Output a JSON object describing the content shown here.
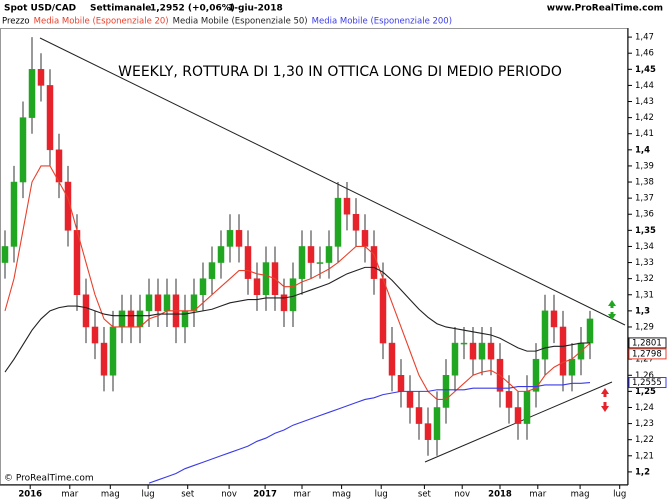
{
  "chart_data": {
    "type": "candlestick",
    "title": "WEEKLY, ROTTURA DI 1,30 IN OTTICA LONG DI MEDIO PERIODO",
    "header": {
      "instrument": "Spot USD/CAD",
      "period": "Settimanale",
      "price": "1,2952 (+0,06%)",
      "date": "1-giu-2018",
      "site": "www.ProRealTime.com"
    },
    "footer": "© ProRealTime.com",
    "price_name": "Prezzo",
    "up_color": "#21a621",
    "down_color": "#e6222b",
    "open": [
      1.33,
      1.34,
      1.38,
      1.42,
      1.45,
      1.44,
      1.4,
      1.38,
      1.35,
      1.31,
      1.29,
      1.28,
      1.26,
      1.29,
      1.3,
      1.29,
      1.3,
      1.31,
      1.3,
      1.31,
      1.29,
      1.3,
      1.31,
      1.32,
      1.33,
      1.34,
      1.35,
      1.34,
      1.32,
      1.31,
      1.33,
      1.31,
      1.3,
      1.32,
      1.34,
      1.33,
      1.33,
      1.34,
      1.37,
      1.36,
      1.35,
      1.34,
      1.32,
      1.28,
      1.26,
      1.25,
      1.24,
      1.23,
      1.22,
      1.24,
      1.26,
      1.28,
      1.28,
      1.27,
      1.28,
      1.27,
      1.25,
      1.24,
      1.23,
      1.25,
      1.27,
      1.3,
      1.29,
      1.26,
      1.27,
      1.28
    ],
    "high": [
      1.35,
      1.39,
      1.43,
      1.47,
      1.46,
      1.45,
      1.41,
      1.39,
      1.36,
      1.32,
      1.3,
      1.29,
      1.3,
      1.31,
      1.31,
      1.31,
      1.32,
      1.32,
      1.32,
      1.32,
      1.31,
      1.32,
      1.33,
      1.34,
      1.35,
      1.36,
      1.36,
      1.35,
      1.33,
      1.34,
      1.34,
      1.32,
      1.33,
      1.35,
      1.35,
      1.34,
      1.35,
      1.38,
      1.38,
      1.37,
      1.36,
      1.35,
      1.33,
      1.29,
      1.27,
      1.26,
      1.25,
      1.24,
      1.25,
      1.27,
      1.29,
      1.29,
      1.29,
      1.29,
      1.29,
      1.28,
      1.26,
      1.25,
      1.26,
      1.28,
      1.31,
      1.31,
      1.3,
      1.28,
      1.29,
      1.3
    ],
    "low": [
      1.32,
      1.33,
      1.37,
      1.41,
      1.43,
      1.39,
      1.37,
      1.34,
      1.3,
      1.28,
      1.27,
      1.25,
      1.25,
      1.28,
      1.28,
      1.28,
      1.29,
      1.29,
      1.29,
      1.28,
      1.28,
      1.29,
      1.3,
      1.31,
      1.32,
      1.33,
      1.33,
      1.31,
      1.3,
      1.3,
      1.3,
      1.29,
      1.29,
      1.31,
      1.32,
      1.32,
      1.32,
      1.33,
      1.35,
      1.34,
      1.33,
      1.31,
      1.27,
      1.25,
      1.24,
      1.23,
      1.22,
      1.21,
      1.21,
      1.23,
      1.25,
      1.27,
      1.26,
      1.26,
      1.26,
      1.24,
      1.23,
      1.22,
      1.22,
      1.24,
      1.26,
      1.28,
      1.25,
      1.25,
      1.26,
      1.27
    ],
    "close": [
      1.34,
      1.38,
      1.42,
      1.45,
      1.44,
      1.4,
      1.38,
      1.35,
      1.31,
      1.29,
      1.28,
      1.26,
      1.29,
      1.3,
      1.29,
      1.3,
      1.31,
      1.3,
      1.31,
      1.29,
      1.3,
      1.31,
      1.32,
      1.33,
      1.34,
      1.35,
      1.34,
      1.32,
      1.31,
      1.33,
      1.31,
      1.3,
      1.32,
      1.34,
      1.33,
      1.33,
      1.34,
      1.37,
      1.36,
      1.35,
      1.34,
      1.32,
      1.28,
      1.26,
      1.25,
      1.24,
      1.23,
      1.22,
      1.24,
      1.26,
      1.28,
      1.28,
      1.27,
      1.28,
      1.27,
      1.25,
      1.24,
      1.23,
      1.25,
      1.27,
      1.3,
      1.29,
      1.26,
      1.27,
      1.28,
      1.295
    ],
    "series": [
      {
        "name": "Media Mobile (Esponenziale 20)",
        "color": "#e8412c",
        "last_label": "1,2798",
        "values": [
          1.3,
          1.32,
          1.35,
          1.38,
          1.39,
          1.39,
          1.38,
          1.37,
          1.35,
          1.33,
          1.31,
          1.295,
          1.29,
          1.29,
          1.29,
          1.29,
          1.295,
          1.297,
          1.3,
          1.3,
          1.3,
          1.3,
          1.305,
          1.31,
          1.315,
          1.32,
          1.325,
          1.325,
          1.323,
          1.322,
          1.32,
          1.315,
          1.315,
          1.318,
          1.32,
          1.323,
          1.326,
          1.33,
          1.335,
          1.34,
          1.34,
          1.335,
          1.32,
          1.305,
          1.29,
          1.275,
          1.26,
          1.25,
          1.245,
          1.245,
          1.25,
          1.255,
          1.26,
          1.262,
          1.263,
          1.26,
          1.255,
          1.25,
          1.25,
          1.252,
          1.26,
          1.265,
          1.268,
          1.27,
          1.275,
          1.2798
        ]
      },
      {
        "name": "Media Mobile (Esponenziale 50)",
        "color": "#222222",
        "last_label": "1,2801",
        "values": [
          1.262,
          1.27,
          1.279,
          1.288,
          1.295,
          1.3,
          1.302,
          1.303,
          1.303,
          1.302,
          1.3,
          1.298,
          1.297,
          1.297,
          1.297,
          1.297,
          1.297,
          1.298,
          1.298,
          1.298,
          1.298,
          1.299,
          1.3,
          1.301,
          1.303,
          1.305,
          1.306,
          1.307,
          1.307,
          1.308,
          1.308,
          1.308,
          1.309,
          1.311,
          1.313,
          1.315,
          1.317,
          1.32,
          1.323,
          1.325,
          1.327,
          1.327,
          1.324,
          1.319,
          1.313,
          1.307,
          1.301,
          1.296,
          1.292,
          1.29,
          1.289,
          1.288,
          1.287,
          1.286,
          1.285,
          1.283,
          1.28,
          1.277,
          1.275,
          1.275,
          1.277,
          1.278,
          1.278,
          1.279,
          1.28,
          1.2801
        ]
      },
      {
        "name": "Media Mobile (Esponenziale 200)",
        "color": "#3b3be6",
        "last_label": "1,2555",
        "values": [
          null,
          null,
          null,
          null,
          null,
          null,
          null,
          null,
          null,
          null,
          null,
          null,
          null,
          null,
          null,
          null,
          1.193,
          1.195,
          1.197,
          1.199,
          1.202,
          1.204,
          1.206,
          1.208,
          1.21,
          1.212,
          1.214,
          1.216,
          1.219,
          1.221,
          1.224,
          1.226,
          1.229,
          1.231,
          1.233,
          1.235,
          1.237,
          1.239,
          1.241,
          1.243,
          1.245,
          1.246,
          1.248,
          1.249,
          1.25,
          1.25,
          1.25,
          1.25,
          1.251,
          1.251,
          1.251,
          1.251,
          1.252,
          1.252,
          1.252,
          1.252,
          1.252,
          1.253,
          1.253,
          1.253,
          1.254,
          1.254,
          1.254,
          1.255,
          1.255,
          1.2555
        ]
      }
    ],
    "ylim": [
      1.19,
      1.48
    ],
    "yticks": [
      {
        "value": 1.2,
        "label": "1,2"
      },
      {
        "value": 1.21,
        "label": "1,21"
      },
      {
        "value": 1.22,
        "label": "1,22"
      },
      {
        "value": 1.23,
        "label": "1,23"
      },
      {
        "value": 1.24,
        "label": "1,24"
      },
      {
        "value": 1.25,
        "label": "1,25"
      },
      {
        "value": 1.26,
        "label": "1,26"
      },
      {
        "value": 1.27,
        "label": "1,27"
      },
      {
        "value": 1.28,
        "label": "1,28"
      },
      {
        "value": 1.29,
        "label": "1,29"
      },
      {
        "value": 1.3,
        "label": "1,3"
      },
      {
        "value": 1.31,
        "label": "1,31"
      },
      {
        "value": 1.32,
        "label": "1,32"
      },
      {
        "value": 1.33,
        "label": "1,33"
      },
      {
        "value": 1.34,
        "label": "1,34"
      },
      {
        "value": 1.35,
        "label": "1,35"
      },
      {
        "value": 1.36,
        "label": "1,36"
      },
      {
        "value": 1.37,
        "label": "1,37"
      },
      {
        "value": 1.38,
        "label": "1,38"
      },
      {
        "value": 1.39,
        "label": "1,39"
      },
      {
        "value": 1.4,
        "label": "1,4"
      },
      {
        "value": 1.41,
        "label": "1,41"
      },
      {
        "value": 1.42,
        "label": "1,42"
      },
      {
        "value": 1.43,
        "label": "1,43"
      },
      {
        "value": 1.44,
        "label": "1,44"
      },
      {
        "value": 1.45,
        "label": "1,45"
      },
      {
        "value": 1.46,
        "label": "1,46"
      },
      {
        "value": 1.47,
        "label": "1,47"
      }
    ],
    "xticks": [
      {
        "value": 2.8,
        "label": "2016"
      },
      {
        "value": 7.2,
        "label": "mar"
      },
      {
        "value": 11.7,
        "label": "mag"
      },
      {
        "value": 15.9,
        "label": "lug"
      },
      {
        "value": 20.3,
        "label": "set"
      },
      {
        "value": 24.9,
        "label": "nov"
      },
      {
        "value": 28.9,
        "label": "2017"
      },
      {
        "value": 33,
        "label": "mar"
      },
      {
        "value": 37.4,
        "label": "mag"
      },
      {
        "value": 41.8,
        "label": "lug"
      },
      {
        "value": 46.6,
        "label": "set"
      },
      {
        "value": 50.8,
        "label": "nov"
      },
      {
        "value": 55,
        "label": "2018"
      },
      {
        "value": 59.2,
        "label": "mar"
      },
      {
        "value": 63.9,
        "label": "mag"
      },
      {
        "value": 68.3,
        "label": "lug"
      }
    ]
  }
}
